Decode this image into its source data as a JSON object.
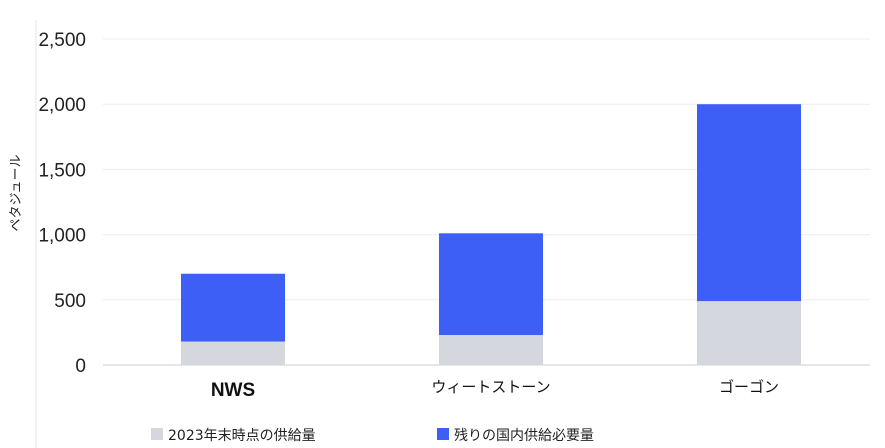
{
  "chart_data": {
    "type": "bar",
    "stacked": true,
    "categories": [
      "NWS",
      "ウィートストーン",
      "ゴーゴン"
    ],
    "series": [
      {
        "name": "2023年末時点の供給量",
        "values": [
          180,
          230,
          490
        ],
        "color": "#d4d7dd"
      },
      {
        "name": "残りの国内供給必要量",
        "values": [
          520,
          780,
          1510
        ],
        "color": "#3e5ff5"
      }
    ],
    "ylabel": "ペタジュール",
    "ylim": [
      0,
      2500
    ],
    "yticks": [
      0,
      500,
      1000,
      1500,
      2000,
      2500
    ],
    "ytick_labels": [
      "0",
      "500",
      "1,000",
      "1,500",
      "2,000",
      "2,500"
    ],
    "grid": true,
    "legend_position": "bottom"
  }
}
